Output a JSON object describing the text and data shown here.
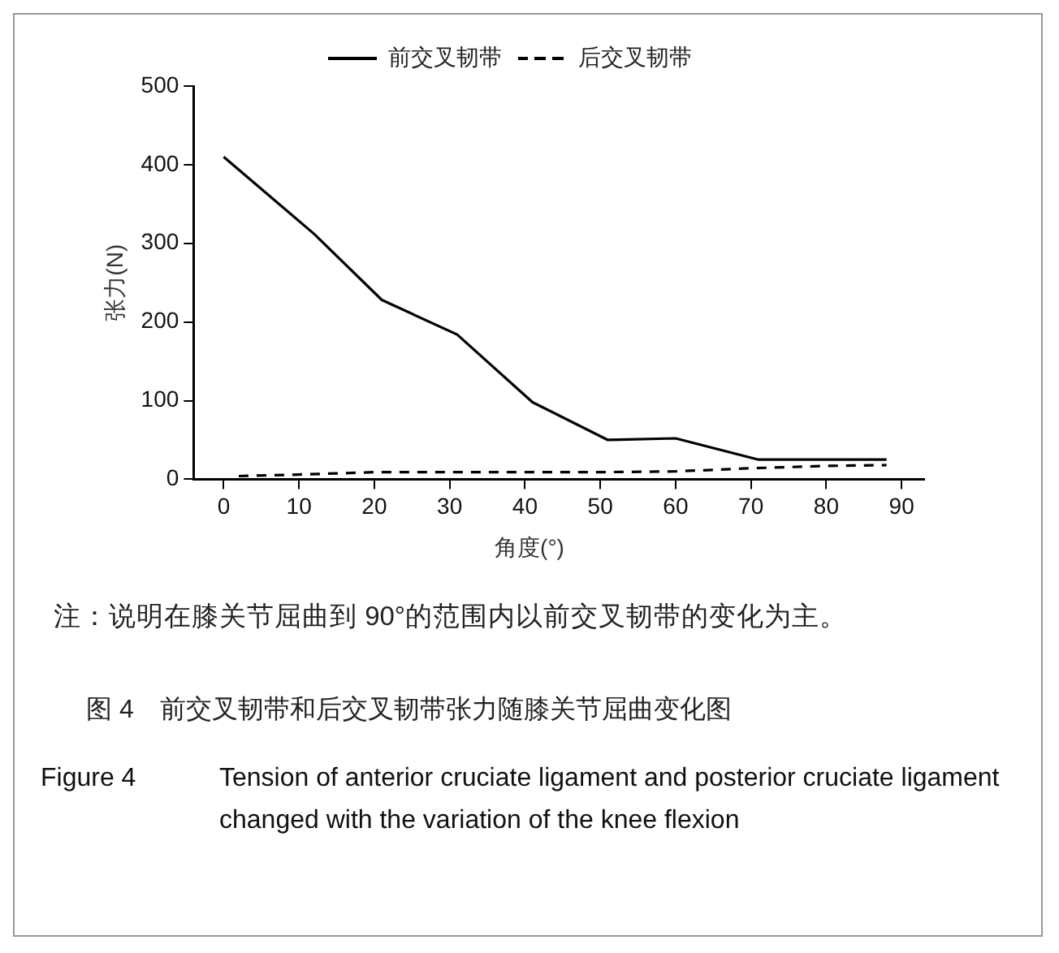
{
  "chart_data": {
    "type": "line",
    "title": "图 4　前交叉韧带和后交叉韧带张力随膝关节屈曲变化图",
    "subtitle": "Figure 4　Tension of anterior cruciate ligament and posterior cruciate ligament changed with the variation of the knee flexion",
    "xlabel": "角度(°)",
    "ylabel": "张力(N)",
    "annotations": [
      "注：说明在膝关节屈曲到 90°的范围内以前交叉韧带的变化为主。"
    ],
    "series": [
      {
        "name": "前交叉韧带",
        "color": "#000000",
        "line_style": "solid",
        "x": [
          0,
          12,
          21,
          31,
          41,
          51,
          60,
          71,
          88
        ],
        "values": [
          410,
          312,
          228,
          184,
          98,
          50,
          52,
          25,
          25
        ]
      },
      {
        "name": "后交叉韧带",
        "color": "#000000",
        "line_style": "dashed",
        "x": [
          2,
          10,
          20,
          30,
          40,
          50,
          60,
          70,
          80,
          88
        ],
        "values": [
          4,
          6,
          9,
          9,
          9,
          9,
          10,
          14,
          17,
          18
        ]
      }
    ],
    "xlim": [
      -4,
      93
    ],
    "xticks": [
      0,
      10,
      20,
      30,
      40,
      50,
      60,
      70,
      80,
      90
    ],
    "ylim": [
      0,
      500
    ],
    "yticks": [
      0,
      100,
      200,
      300,
      400,
      500
    ],
    "grid": false,
    "legend": "top",
    "marker": "none"
  }
}
